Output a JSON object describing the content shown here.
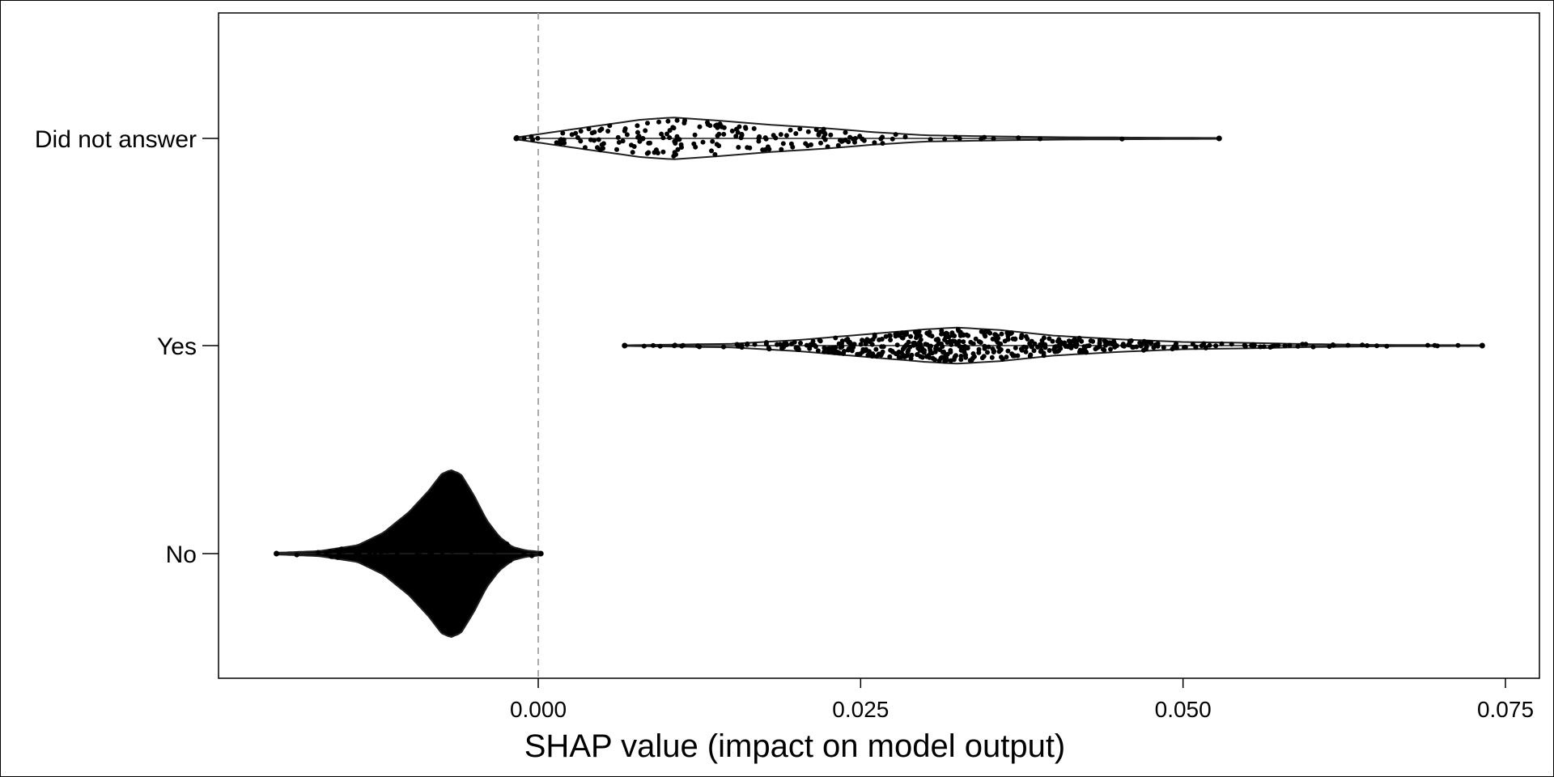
{
  "chart_data": {
    "type": "violin",
    "title": "",
    "xlabel": "SHAP value (impact on model output)",
    "ylabel": "",
    "xlim": [
      -0.025,
      0.0775
    ],
    "x_ticks": [
      0.0,
      0.025,
      0.05,
      0.075
    ],
    "x_tick_labels": [
      "0.000",
      "0.025",
      "0.050",
      "0.075"
    ],
    "reference_line": {
      "x": 0.0,
      "style": "dashed",
      "color": "#aaaaaa"
    },
    "grid": false,
    "legend": "none",
    "categories": [
      "Did not answer",
      "Yes",
      "No"
    ],
    "series": [
      {
        "category": "Did not answer",
        "range": [
          -0.0017,
          0.0528
        ],
        "profile": [
          [
            -0.0017,
            0.05
          ],
          [
            0.0,
            0.2
          ],
          [
            0.004,
            0.55
          ],
          [
            0.008,
            0.9
          ],
          [
            0.0105,
            1.0
          ],
          [
            0.014,
            0.85
          ],
          [
            0.018,
            0.65
          ],
          [
            0.022,
            0.5
          ],
          [
            0.026,
            0.3
          ],
          [
            0.03,
            0.15
          ],
          [
            0.035,
            0.1
          ],
          [
            0.04,
            0.06
          ],
          [
            0.046,
            0.04
          ],
          [
            0.0528,
            0.02
          ]
        ],
        "max_half_width": 0.011,
        "n_points": 190,
        "point_color": "#000000"
      },
      {
        "category": "Yes",
        "range": [
          0.0067,
          0.0732
        ],
        "profile": [
          [
            0.0067,
            0.02
          ],
          [
            0.01,
            0.05
          ],
          [
            0.015,
            0.1
          ],
          [
            0.02,
            0.3
          ],
          [
            0.025,
            0.6
          ],
          [
            0.03,
            0.9
          ],
          [
            0.0325,
            1.0
          ],
          [
            0.036,
            0.85
          ],
          [
            0.04,
            0.55
          ],
          [
            0.045,
            0.35
          ],
          [
            0.05,
            0.2
          ],
          [
            0.055,
            0.15
          ],
          [
            0.06,
            0.08
          ],
          [
            0.065,
            0.04
          ],
          [
            0.0732,
            0.02
          ]
        ],
        "max_half_width": 0.0095,
        "n_points": 520,
        "point_color": "#000000"
      },
      {
        "category": "No",
        "range": [
          -0.0203,
          0.0002
        ],
        "profile": [
          [
            -0.0203,
            0.01
          ],
          [
            -0.017,
            0.03
          ],
          [
            -0.014,
            0.1
          ],
          [
            -0.012,
            0.25
          ],
          [
            -0.01,
            0.5
          ],
          [
            -0.0085,
            0.75
          ],
          [
            -0.0075,
            0.95
          ],
          [
            -0.0068,
            1.0
          ],
          [
            -0.006,
            0.95
          ],
          [
            -0.005,
            0.7
          ],
          [
            -0.004,
            0.4
          ],
          [
            -0.003,
            0.2
          ],
          [
            -0.002,
            0.08
          ],
          [
            -0.001,
            0.04
          ],
          [
            0.0002,
            0.02
          ]
        ],
        "max_half_width": 0.044,
        "n_points": 2500,
        "point_color": "#000000"
      }
    ]
  }
}
